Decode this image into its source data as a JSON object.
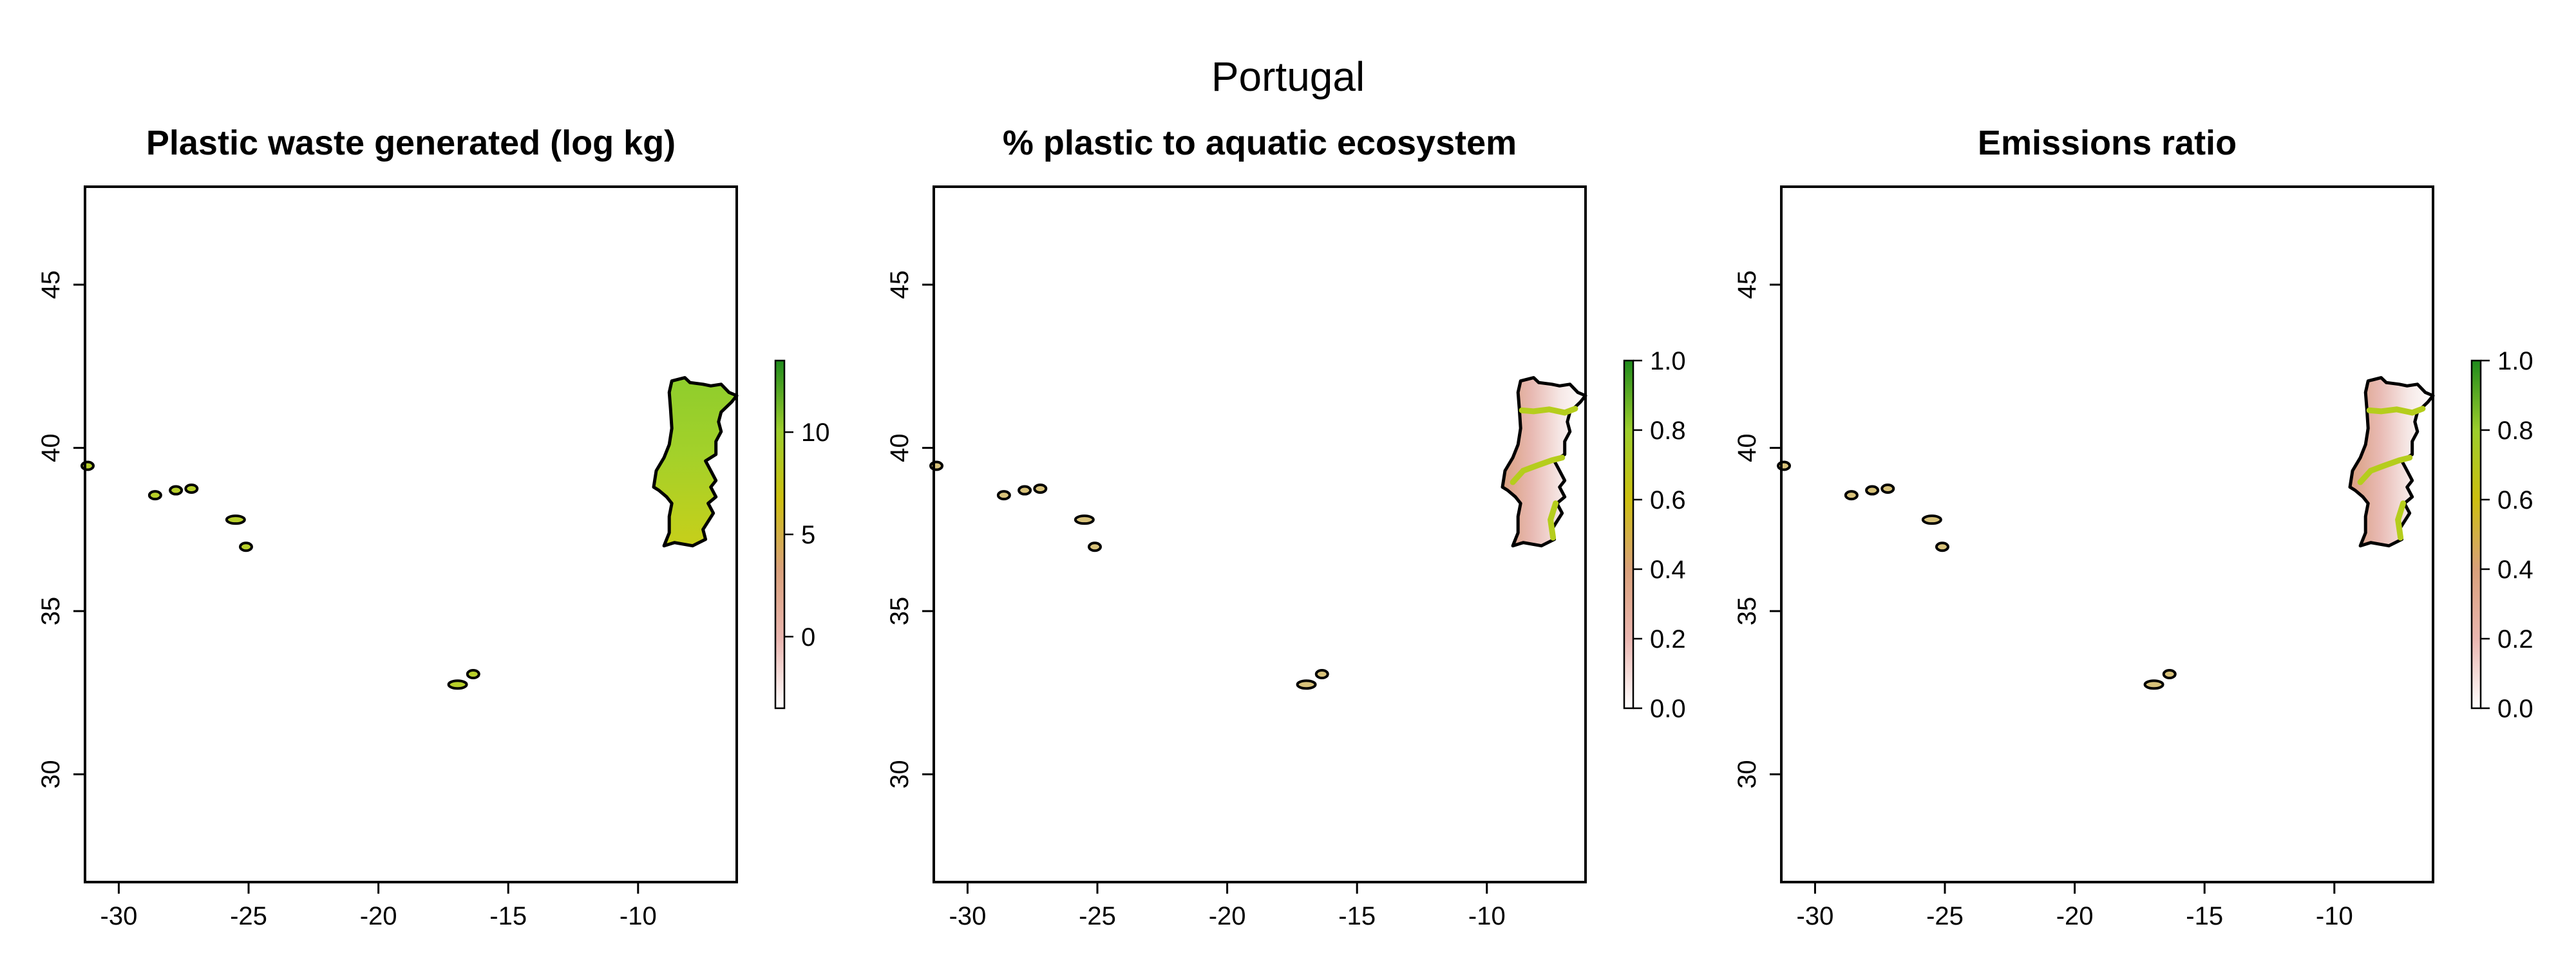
{
  "title": "Portugal",
  "colors": {
    "land_outline": "#000000",
    "scale": [
      "#ffffff",
      "#eab6b0",
      "#d9a07a",
      "#cdbf10",
      "#9ccd2c",
      "#1f8a1c"
    ]
  },
  "x_axis": {
    "range": [
      -31.3,
      -6.2
    ],
    "ticks": [
      -30,
      -25,
      -20,
      -15,
      -10
    ]
  },
  "y_axis": {
    "range": [
      26.7,
      48.0
    ],
    "ticks": [
      30,
      35,
      40,
      45
    ]
  },
  "panels": [
    {
      "title": "Plastic waste generated (log kg)",
      "legend": {
        "range": [
          -3.5,
          13.5
        ],
        "ticks": [
          0,
          5,
          10
        ]
      },
      "fill": "waste"
    },
    {
      "title": "% plastic to aquatic ecosystem",
      "legend": {
        "range": [
          0,
          1
        ],
        "ticks": [
          "0.0",
          "0.2",
          "0.4",
          "0.6",
          "0.8",
          "1.0"
        ]
      },
      "fill": "aquatic"
    },
    {
      "title": "Emissions ratio",
      "legend": {
        "range": [
          0,
          1
        ],
        "ticks": [
          "0.0",
          "0.2",
          "0.4",
          "0.6",
          "0.8",
          "1.0"
        ]
      },
      "fill": "aquatic"
    }
  ],
  "islands": [
    {
      "name": "flores",
      "lon": -31.2,
      "lat": 39.45
    },
    {
      "name": "faial",
      "lon": -28.6,
      "lat": 38.55
    },
    {
      "name": "sao-jorge",
      "lon": -27.8,
      "lat": 38.7
    },
    {
      "name": "terceira",
      "lon": -27.2,
      "lat": 38.75
    },
    {
      "name": "sao-miguel",
      "lon": -25.5,
      "lat": 37.8
    },
    {
      "name": "santa-maria",
      "lon": -25.1,
      "lat": 36.97
    },
    {
      "name": "madeira",
      "lon": -16.95,
      "lat": 32.75
    },
    {
      "name": "porto-santo",
      "lon": -16.35,
      "lat": 33.07
    }
  ]
}
